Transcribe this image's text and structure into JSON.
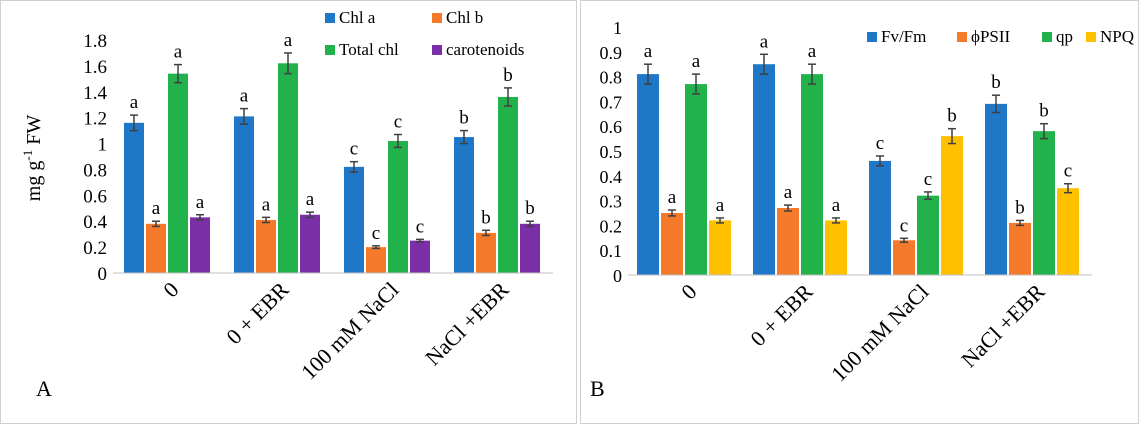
{
  "chart_data": [
    {
      "panel": "A",
      "type": "bar",
      "panel_label": "A",
      "ylabel": "mg g-1 FW",
      "ylabel_parts": {
        "pre": "mg g",
        "sup": "-1",
        "post": " FW"
      },
      "ylim": [
        0,
        1.8
      ],
      "yticks": [
        "0",
        "0.2",
        "0.4",
        "0.6",
        "0.8",
        "1",
        "1.2",
        "1.4",
        "1.6",
        "1.8"
      ],
      "categories": [
        "0",
        "0 + EBR",
        "100 mM NaCl",
        "NaCl +EBR"
      ],
      "grid": false,
      "legend_position": "top-right",
      "series": [
        {
          "name": "Chl a",
          "color": "#1f77c8",
          "values": [
            1.16,
            1.21,
            0.82,
            1.05
          ],
          "errors": [
            0.06,
            0.06,
            0.04,
            0.05
          ],
          "letters": [
            "a",
            "a",
            "c",
            "b"
          ]
        },
        {
          "name": "Chl b",
          "color": "#f4792b",
          "values": [
            0.38,
            0.41,
            0.2,
            0.31
          ],
          "errors": [
            0.02,
            0.02,
            0.01,
            0.02
          ],
          "letters": [
            "a",
            "a",
            "c",
            "b"
          ]
        },
        {
          "name": "Total chl",
          "color": "#22b24c",
          "values": [
            1.54,
            1.62,
            1.02,
            1.36
          ],
          "errors": [
            0.07,
            0.08,
            0.05,
            0.07
          ],
          "letters": [
            "a",
            "a",
            "c",
            "b"
          ]
        },
        {
          "name": "carotenoids",
          "color": "#7a2fa6",
          "values": [
            0.43,
            0.45,
            0.25,
            0.38
          ],
          "errors": [
            0.02,
            0.02,
            0.01,
            0.02
          ],
          "letters": [
            "a",
            "a",
            "c",
            "b"
          ]
        }
      ]
    },
    {
      "panel": "B",
      "type": "bar",
      "panel_label": "B",
      "ylabel": "",
      "ylim": [
        0,
        1
      ],
      "yticks": [
        "0",
        "0.1",
        "0.2",
        "0.3",
        "0.4",
        "0.5",
        "0.6",
        "0.7",
        "0.8",
        "0.9",
        "1"
      ],
      "categories": [
        "0",
        "0 + EBR",
        "100 mM NaCl",
        "NaCl +EBR"
      ],
      "grid": false,
      "legend_position": "top",
      "series": [
        {
          "name": "Fv/Fm",
          "color": "#1f77c8",
          "values": [
            0.81,
            0.85,
            0.46,
            0.69
          ],
          "errors": [
            0.04,
            0.04,
            0.02,
            0.035
          ],
          "letters": [
            "a",
            "a",
            "c",
            "b"
          ]
        },
        {
          "name": "ϕPSII",
          "color": "#f4792b",
          "values": [
            0.25,
            0.27,
            0.14,
            0.21
          ],
          "errors": [
            0.012,
            0.012,
            0.008,
            0.01
          ],
          "letters": [
            "a",
            "a",
            "c",
            "b"
          ]
        },
        {
          "name": "qp",
          "color": "#22b24c",
          "values": [
            0.77,
            0.81,
            0.32,
            0.58
          ],
          "errors": [
            0.04,
            0.04,
            0.015,
            0.03
          ],
          "letters": [
            "a",
            "a",
            "c",
            "b"
          ]
        },
        {
          "name": "NPQ",
          "color": "#ffc000",
          "values": [
            0.22,
            0.22,
            0.56,
            0.35
          ],
          "errors": [
            0.01,
            0.01,
            0.03,
            0.018
          ],
          "letters": [
            "a",
            "a",
            "b",
            "c"
          ]
        }
      ]
    }
  ]
}
